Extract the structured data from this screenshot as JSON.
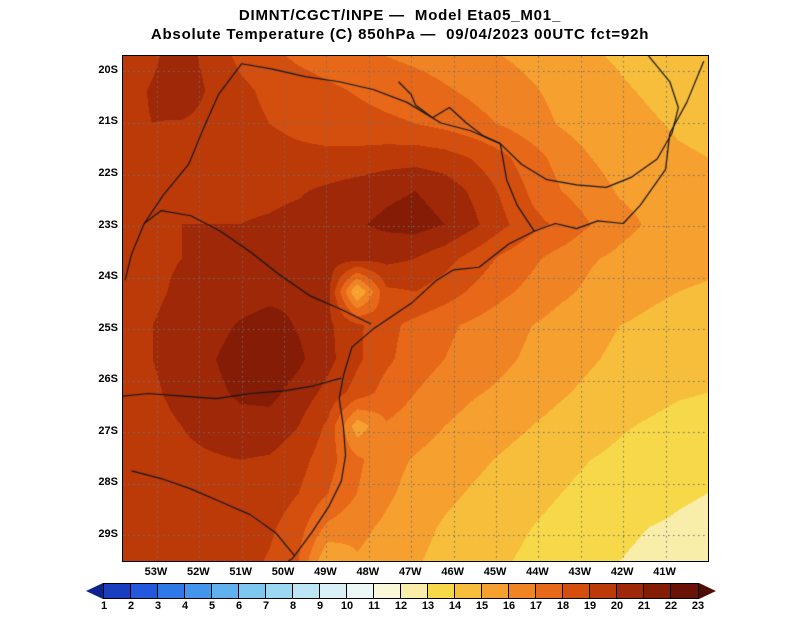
{
  "title": {
    "line1": "DIMNT/CGCT/INPE —  Model Eta05_M01_",
    "line2": "Absolute Temperature (C) 850hPa —  09/04/2023 00UTC fct=92h"
  },
  "chart_data": {
    "type": "heatmap",
    "title": "DIMNT/CGCT/INPE — Model Eta05_M01_ : Absolute Temperature (C) 850hPa — 09/04/2023 00UTC fct=92h",
    "model": "Eta05_M01_",
    "variable": "Absolute Temperature",
    "units": "C",
    "level": "850hPa",
    "valid": "09/04/2023 00UTC",
    "forecast": "fct=92h",
    "lat_ticks": [
      "20S",
      "21S",
      "22S",
      "23S",
      "24S",
      "25S",
      "26S",
      "27S",
      "28S",
      "29S"
    ],
    "lon_ticks": [
      "53W",
      "52W",
      "51W",
      "50W",
      "49W",
      "48W",
      "47W",
      "46W",
      "45W",
      "44W",
      "43W",
      "42W",
      "41W"
    ],
    "lat_range": [
      19.7,
      29.5
    ],
    "lon_range": [
      53.8,
      40.0
    ],
    "colors": {
      "background": "#ffffff",
      "grid": "#6e6e6e",
      "boundary": "#161616",
      "frame": "#000000"
    },
    "colorbar": {
      "labels": [
        "1",
        "2",
        "3",
        "4",
        "5",
        "6",
        "7",
        "8",
        "9",
        "10",
        "11",
        "12",
        "13",
        "14",
        "15",
        "16",
        "17",
        "18",
        "19",
        "20",
        "21",
        "22",
        "23"
      ],
      "colors": [
        "#0c2290",
        "#1a3ec0",
        "#2458dc",
        "#2f78e8",
        "#4496ec",
        "#60b2ee",
        "#7cc8f0",
        "#9cd8f2",
        "#bce6f4",
        "#d8f0f6",
        "#ecf8f8",
        "#faf8d8",
        "#f8eeaa",
        "#f6d848",
        "#f6be3a",
        "#f6a030",
        "#f08424",
        "#e66818",
        "#d44e0e",
        "#bc3a08",
        "#9e2807",
        "#841c06",
        "#6a1205",
        "#4e0c04"
      ]
    },
    "grid": {
      "lons_w": [
        53.8,
        53.11,
        52.42,
        51.73,
        51.04,
        50.35,
        49.66,
        48.97,
        48.28,
        47.59,
        46.9,
        46.21,
        45.52,
        44.83,
        44.14,
        43.45,
        42.76,
        42.07,
        41.38,
        40.69,
        40.0
      ],
      "lats_s": [
        19.7,
        20.35,
        21.01,
        21.66,
        22.31,
        22.97,
        23.62,
        24.27,
        24.93,
        25.58,
        26.23,
        26.89,
        27.54,
        28.19,
        28.85,
        29.5
      ],
      "values": [
        [
          19.3,
          19.8,
          20.6,
          19.5,
          18.8,
          18.3,
          17.8,
          17.5,
          17.2,
          17.0,
          16.8,
          16.6,
          16.3,
          16.0,
          15.7,
          15.4,
          15.1,
          14.9,
          14.7,
          14.5,
          14.4
        ],
        [
          19.6,
          20.1,
          20.8,
          19.8,
          19.2,
          18.8,
          18.5,
          18.2,
          17.9,
          17.6,
          17.4,
          17.1,
          16.8,
          16.5,
          16.1,
          15.7,
          15.4,
          15.1,
          14.9,
          14.7,
          14.6
        ],
        [
          19.8,
          20.0,
          19.9,
          19.6,
          19.3,
          19.0,
          18.8,
          18.6,
          18.4,
          18.2,
          18.0,
          17.7,
          17.3,
          16.9,
          16.4,
          15.9,
          15.5,
          15.3,
          15.1,
          14.9,
          14.8
        ],
        [
          19.9,
          20.0,
          19.9,
          19.7,
          19.5,
          19.3,
          19.2,
          19.2,
          19.3,
          19.5,
          19.6,
          19.4,
          18.9,
          18.2,
          17.4,
          16.6,
          16.0,
          15.6,
          15.3,
          15.1,
          15.0
        ],
        [
          19.9,
          20.0,
          20.0,
          19.9,
          19.8,
          19.8,
          19.9,
          20.2,
          20.5,
          20.8,
          21.0,
          20.6,
          19.8,
          18.8,
          17.8,
          17.0,
          16.4,
          15.9,
          15.7,
          15.6,
          15.5
        ],
        [
          19.8,
          19.9,
          20.0,
          20.0,
          20.0,
          20.1,
          20.3,
          20.6,
          20.9,
          21.2,
          21.4,
          21.0,
          20.2,
          19.2,
          18.3,
          17.8,
          17.0,
          16.3,
          15.9,
          15.6,
          15.5
        ],
        [
          19.8,
          19.9,
          20.0,
          20.1,
          20.2,
          20.4,
          20.5,
          20.5,
          20.4,
          20.3,
          20.0,
          19.4,
          18.6,
          17.8,
          17.2,
          16.6,
          16.1,
          15.8,
          15.5,
          15.3,
          15.2
        ],
        [
          19.7,
          19.9,
          20.1,
          20.3,
          20.5,
          20.7,
          20.8,
          20.3,
          14.8,
          18.8,
          19.0,
          18.5,
          17.8,
          17.2,
          16.7,
          16.2,
          15.8,
          15.5,
          15.2,
          15.0,
          14.9
        ],
        [
          19.9,
          20.0,
          20.2,
          20.6,
          21.1,
          21.4,
          20.9,
          20.2,
          19.2,
          18.3,
          17.7,
          17.2,
          16.8,
          16.4,
          16.0,
          15.6,
          15.3,
          15.0,
          14.8,
          14.6,
          14.5
        ],
        [
          19.8,
          20.0,
          20.3,
          20.9,
          21.5,
          21.8,
          21.2,
          20.3,
          19.2,
          18.2,
          17.5,
          17.0,
          16.6,
          16.2,
          15.8,
          15.4,
          15.1,
          14.8,
          14.6,
          14.4,
          14.3
        ],
        [
          19.7,
          19.9,
          20.2,
          20.7,
          21.2,
          21.3,
          20.6,
          19.7,
          18.6,
          17.6,
          17.0,
          16.5,
          16.1,
          15.8,
          15.4,
          15.1,
          14.8,
          14.5,
          14.3,
          14.1,
          14.0
        ],
        [
          19.6,
          19.8,
          20.0,
          20.3,
          20.6,
          20.6,
          20.0,
          18.8,
          15.4,
          16.9,
          16.5,
          16.0,
          15.6,
          15.3,
          15.0,
          14.7,
          14.4,
          14.1,
          13.9,
          13.7,
          13.6
        ],
        [
          19.4,
          19.6,
          19.8,
          19.9,
          20.0,
          19.9,
          19.4,
          18.4,
          17.2,
          16.4,
          15.9,
          15.5,
          15.2,
          14.9,
          14.6,
          14.3,
          14.0,
          13.8,
          13.6,
          13.4,
          13.3
        ],
        [
          19.3,
          19.5,
          19.7,
          19.8,
          19.8,
          19.6,
          19.0,
          18.0,
          17.0,
          16.2,
          15.6,
          15.2,
          14.9,
          14.6,
          14.3,
          14.0,
          13.7,
          13.5,
          13.3,
          13.1,
          13.0
        ],
        [
          19.2,
          19.4,
          19.6,
          19.7,
          19.6,
          19.2,
          18.4,
          16.8,
          16.3,
          15.8,
          15.3,
          14.9,
          14.6,
          14.3,
          14.0,
          13.7,
          13.4,
          13.2,
          13.0,
          12.9,
          12.8
        ],
        [
          19.1,
          19.3,
          19.5,
          19.6,
          19.4,
          18.9,
          18.0,
          15.0,
          15.9,
          15.5,
          15.1,
          14.7,
          14.4,
          14.1,
          13.8,
          13.5,
          13.2,
          13.0,
          12.8,
          12.7,
          12.6
        ]
      ]
    },
    "boundaries": [
      {
        "name": "coastline",
        "points": [
          [
            40.1,
            19.8
          ],
          [
            40.5,
            20.6
          ],
          [
            40.9,
            21.2
          ],
          [
            41.0,
            21.9
          ],
          [
            41.6,
            22.6
          ],
          [
            42.0,
            22.95
          ],
          [
            42.6,
            22.9
          ],
          [
            43.1,
            23.05
          ],
          [
            43.6,
            22.95
          ],
          [
            44.1,
            23.1
          ],
          [
            44.7,
            23.35
          ],
          [
            45.4,
            23.8
          ],
          [
            46.0,
            23.85
          ],
          [
            46.4,
            24.05
          ],
          [
            47.0,
            24.5
          ],
          [
            47.9,
            25.0
          ],
          [
            48.4,
            25.35
          ],
          [
            48.6,
            25.9
          ],
          [
            48.7,
            26.35
          ],
          [
            48.6,
            26.9
          ],
          [
            48.55,
            27.45
          ],
          [
            48.65,
            27.95
          ],
          [
            48.95,
            28.45
          ],
          [
            49.35,
            28.95
          ],
          [
            49.8,
            29.45
          ],
          [
            49.9,
            29.5
          ]
        ]
      },
      {
        "name": "mg-sp-border-rio-grande",
        "points": [
          [
            44.9,
            21.4
          ],
          [
            45.6,
            21.15
          ],
          [
            46.3,
            21.0
          ],
          [
            47.1,
            20.6
          ],
          [
            47.9,
            20.35
          ],
          [
            48.7,
            20.2
          ],
          [
            49.5,
            20.1
          ],
          [
            50.3,
            19.95
          ],
          [
            51.0,
            19.85
          ]
        ]
      },
      {
        "name": "mg-rj-es-border",
        "points": [
          [
            44.9,
            21.4
          ],
          [
            44.4,
            21.8
          ],
          [
            43.8,
            22.1
          ],
          [
            43.1,
            22.2
          ],
          [
            42.4,
            22.25
          ],
          [
            41.8,
            22.05
          ],
          [
            41.2,
            21.7
          ],
          [
            40.85,
            21.2
          ],
          [
            40.7,
            20.7
          ],
          [
            40.9,
            20.2
          ],
          [
            41.2,
            19.9
          ],
          [
            41.4,
            19.7
          ]
        ]
      },
      {
        "name": "sp-rj-border",
        "points": [
          [
            44.1,
            23.1
          ],
          [
            44.5,
            22.6
          ],
          [
            44.75,
            22.1
          ],
          [
            44.9,
            21.4
          ]
        ]
      },
      {
        "name": "parana-river-border",
        "points": [
          [
            51.0,
            19.85
          ],
          [
            51.55,
            20.45
          ],
          [
            51.9,
            21.1
          ],
          [
            52.25,
            21.8
          ],
          [
            52.85,
            22.4
          ],
          [
            53.3,
            22.95
          ],
          [
            53.6,
            23.55
          ],
          [
            53.75,
            24.05
          ]
        ]
      },
      {
        "name": "sp-pr-border",
        "points": [
          [
            47.95,
            24.9
          ],
          [
            48.7,
            24.6
          ],
          [
            49.4,
            24.35
          ],
          [
            50.1,
            23.95
          ],
          [
            50.8,
            23.5
          ],
          [
            51.5,
            23.1
          ],
          [
            52.2,
            22.8
          ],
          [
            52.9,
            22.7
          ],
          [
            53.3,
            22.95
          ]
        ]
      },
      {
        "name": "pr-sc-border",
        "points": [
          [
            48.65,
            25.95
          ],
          [
            49.3,
            26.1
          ],
          [
            50.0,
            26.2
          ],
          [
            50.8,
            26.25
          ],
          [
            51.6,
            26.35
          ],
          [
            52.4,
            26.3
          ],
          [
            53.2,
            26.25
          ],
          [
            53.8,
            26.3
          ]
        ]
      },
      {
        "name": "sc-rs-border",
        "points": [
          [
            49.75,
            29.4
          ],
          [
            50.2,
            28.95
          ],
          [
            50.8,
            28.6
          ],
          [
            51.5,
            28.35
          ],
          [
            52.2,
            28.1
          ],
          [
            52.9,
            27.9
          ],
          [
            53.6,
            27.75
          ]
        ]
      },
      {
        "name": "rio-grande-river",
        "points": [
          [
            47.3,
            20.2
          ],
          [
            47.0,
            20.45
          ],
          [
            46.9,
            20.65
          ],
          [
            46.5,
            20.9
          ],
          [
            46.1,
            20.7
          ],
          [
            45.7,
            21.0
          ],
          [
            45.3,
            21.25
          ],
          [
            44.9,
            21.4
          ]
        ]
      }
    ]
  }
}
